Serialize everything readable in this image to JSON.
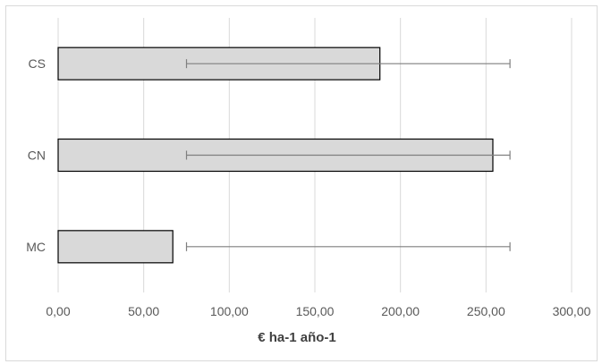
{
  "chart_data": {
    "type": "bar",
    "orientation": "horizontal",
    "categories": [
      "CS",
      "CN",
      "MC"
    ],
    "values": [
      188,
      254,
      67
    ],
    "error_bars": [
      {
        "low": 75,
        "high": 264
      },
      {
        "low": 75,
        "high": 264
      },
      {
        "low": 75,
        "high": 264
      }
    ],
    "xlabel": "€ ha-1 año-1",
    "ylabel": "",
    "xlim": [
      0,
      300
    ],
    "xticks": [
      0,
      50,
      100,
      150,
      200,
      250,
      300
    ],
    "xtick_labels": [
      "0,00",
      "50,00",
      "100,00",
      "150,00",
      "200,00",
      "250,00",
      "300,00"
    ],
    "grid": "vertical",
    "colors": {
      "bar_fill": "#d9d9d9",
      "bar_stroke": "#000000",
      "gridline": "#d9d9d9",
      "error_bar": "#7f7f7f",
      "axis_line": "#d9d9d9"
    }
  }
}
